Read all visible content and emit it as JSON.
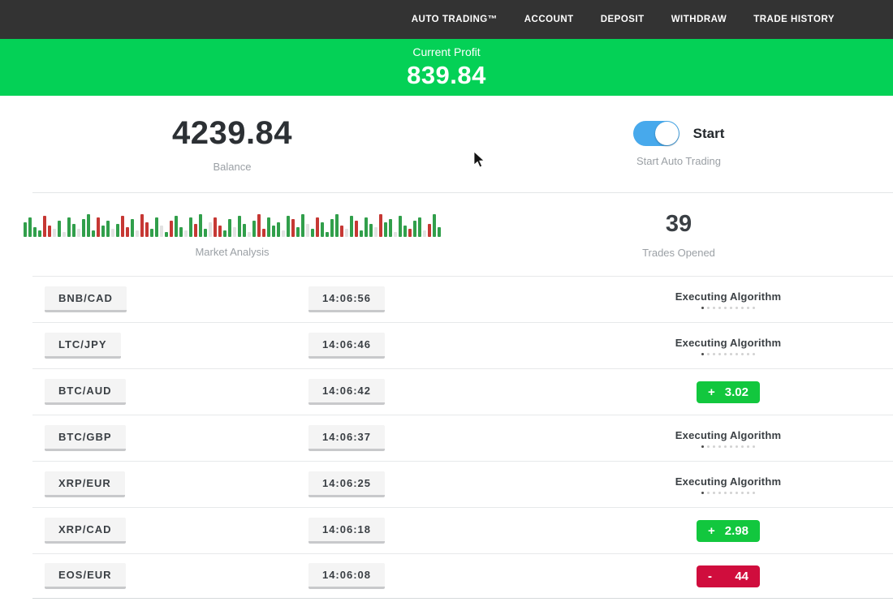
{
  "nav": {
    "items": [
      "AUTO TRADING™",
      "ACCOUNT",
      "DEPOSIT",
      "WITHDRAW",
      "TRADE HISTORY"
    ]
  },
  "banner": {
    "label": "Current Profit",
    "value": "839.84",
    "bg_color": "#04d156"
  },
  "stats": {
    "balance_value": "4239.84",
    "balance_label": "Balance",
    "toggle_label": "Start",
    "toggle_caption": "Start Auto Trading",
    "toggle_on": true,
    "toggle_color": "#47a9ec",
    "market_label": "Market Analysis",
    "trades_opened_value": "39",
    "trades_opened_label": "Trades Opened"
  },
  "chart_data": {
    "type": "bar",
    "title": "Market Analysis",
    "colors": {
      "g": "#319f4b",
      "r": "#c63834",
      "l": "#e2e2e2"
    },
    "bars": [
      [
        18,
        "g"
      ],
      [
        24,
        "g"
      ],
      [
        12,
        "g"
      ],
      [
        8,
        "g"
      ],
      [
        26,
        "r"
      ],
      [
        14,
        "r"
      ],
      [
        10,
        "l"
      ],
      [
        20,
        "g"
      ],
      [
        6,
        "l"
      ],
      [
        24,
        "g"
      ],
      [
        16,
        "g"
      ],
      [
        10,
        "l"
      ],
      [
        22,
        "g"
      ],
      [
        28,
        "g"
      ],
      [
        8,
        "g"
      ],
      [
        24,
        "r"
      ],
      [
        14,
        "g"
      ],
      [
        20,
        "g"
      ],
      [
        10,
        "l"
      ],
      [
        16,
        "g"
      ],
      [
        26,
        "r"
      ],
      [
        12,
        "r"
      ],
      [
        22,
        "g"
      ],
      [
        8,
        "l"
      ],
      [
        28,
        "r"
      ],
      [
        18,
        "r"
      ],
      [
        10,
        "g"
      ],
      [
        24,
        "g"
      ],
      [
        14,
        "l"
      ],
      [
        6,
        "g"
      ],
      [
        20,
        "r"
      ],
      [
        26,
        "g"
      ],
      [
        12,
        "g"
      ],
      [
        8,
        "l"
      ],
      [
        24,
        "g"
      ],
      [
        16,
        "r"
      ],
      [
        28,
        "g"
      ],
      [
        10,
        "g"
      ],
      [
        18,
        "l"
      ],
      [
        24,
        "r"
      ],
      [
        14,
        "r"
      ],
      [
        8,
        "g"
      ],
      [
        22,
        "g"
      ],
      [
        12,
        "l"
      ],
      [
        26,
        "g"
      ],
      [
        16,
        "g"
      ],
      [
        6,
        "l"
      ],
      [
        20,
        "g"
      ],
      [
        28,
        "r"
      ],
      [
        10,
        "r"
      ],
      [
        24,
        "g"
      ],
      [
        14,
        "g"
      ],
      [
        18,
        "g"
      ],
      [
        8,
        "l"
      ],
      [
        26,
        "g"
      ],
      [
        22,
        "r"
      ],
      [
        12,
        "g"
      ],
      [
        28,
        "g"
      ],
      [
        16,
        "l"
      ],
      [
        10,
        "g"
      ],
      [
        24,
        "r"
      ],
      [
        18,
        "g"
      ],
      [
        6,
        "g"
      ],
      [
        22,
        "g"
      ],
      [
        28,
        "g"
      ],
      [
        14,
        "r"
      ],
      [
        10,
        "l"
      ],
      [
        26,
        "g"
      ],
      [
        20,
        "r"
      ],
      [
        8,
        "g"
      ],
      [
        24,
        "g"
      ],
      [
        16,
        "g"
      ],
      [
        12,
        "l"
      ],
      [
        28,
        "r"
      ],
      [
        18,
        "g"
      ],
      [
        22,
        "g"
      ],
      [
        6,
        "l"
      ],
      [
        26,
        "g"
      ],
      [
        14,
        "g"
      ],
      [
        10,
        "r"
      ],
      [
        20,
        "g"
      ],
      [
        24,
        "g"
      ],
      [
        8,
        "l"
      ],
      [
        16,
        "r"
      ],
      [
        28,
        "g"
      ],
      [
        12,
        "g"
      ]
    ]
  },
  "trades": {
    "executing_label": "Executing Algorithm",
    "dots_total": 10,
    "dots_active": 1,
    "profit_color": "#12c73e",
    "loss_color": "#d00d3d",
    "rows": [
      {
        "pair": "BNB/CAD",
        "time": "14:06:56",
        "status": "executing"
      },
      {
        "pair": "LTC/JPY",
        "time": "14:06:46",
        "status": "executing"
      },
      {
        "pair": "BTC/AUD",
        "time": "14:06:42",
        "status": "profit",
        "sign": "+",
        "value": "3.02"
      },
      {
        "pair": "BTC/GBP",
        "time": "14:06:37",
        "status": "executing"
      },
      {
        "pair": "XRP/EUR",
        "time": "14:06:25",
        "status": "executing"
      },
      {
        "pair": "XRP/CAD",
        "time": "14:06:18",
        "status": "profit",
        "sign": "+",
        "value": "2.98"
      },
      {
        "pair": "EOS/EUR",
        "time": "14:06:08",
        "status": "loss",
        "sign": "-",
        "value": "44"
      }
    ]
  }
}
